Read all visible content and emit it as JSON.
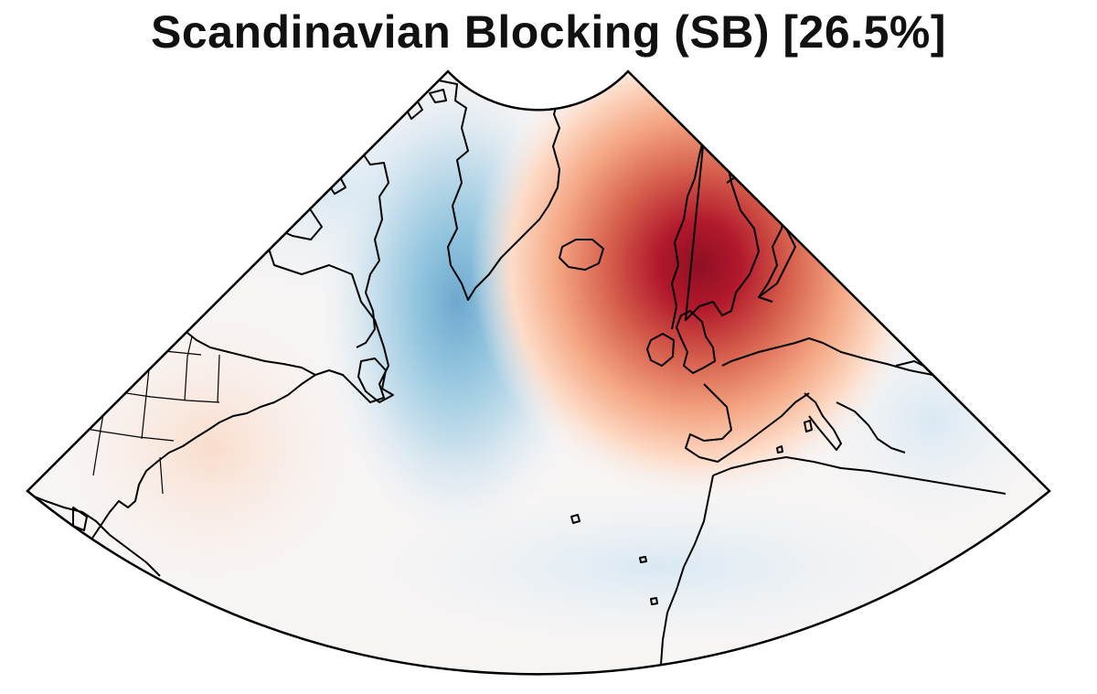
{
  "title": "Scandinavian Blocking (SB) [26.5%]",
  "map": {
    "projection": "conic sector over the North Atlantic",
    "coastline_color": "#000000",
    "colors": {
      "positive_anomaly": "#b2182b",
      "negative_anomaly": "#4393c3",
      "neutral": "#f7f4f4"
    }
  }
}
